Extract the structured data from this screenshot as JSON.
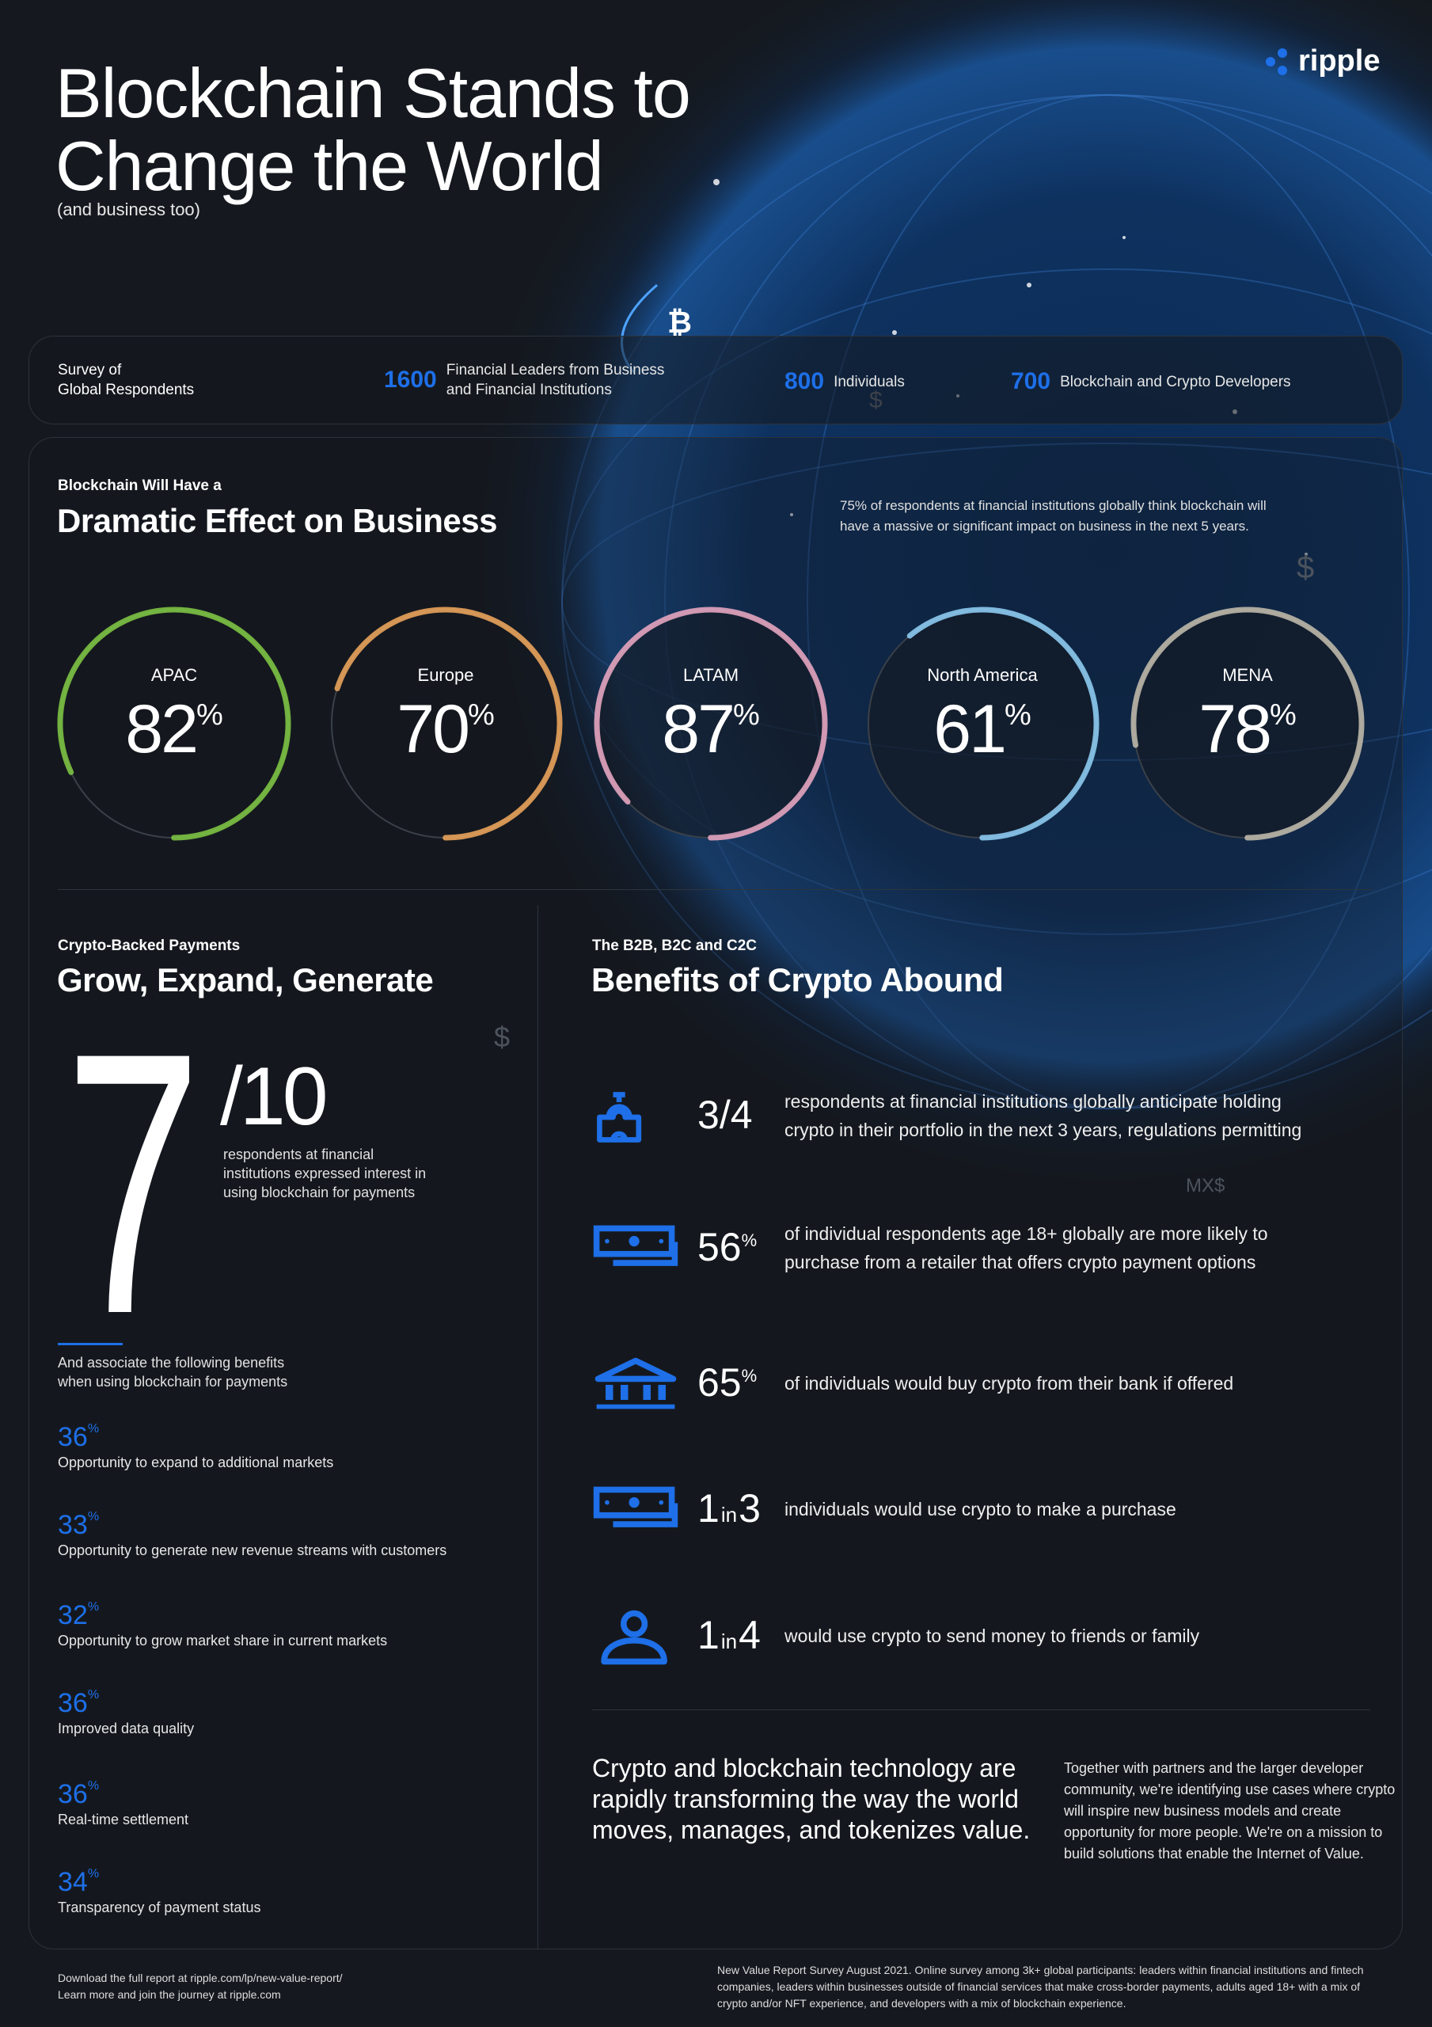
{
  "header": {
    "title_line1": "Blockchain Stands to",
    "title_line2": "Change the World",
    "subtitle": "(and business too)",
    "logo_text": "ripple"
  },
  "survey": {
    "label_line1": "Survey of",
    "label_line2": "Global Respondents",
    "items": [
      {
        "number": "1600",
        "line1": "Financial Leaders from Business",
        "line2": "and Financial Institutions"
      },
      {
        "number": "800",
        "line1": "Individuals"
      },
      {
        "number": "700",
        "line1": "Blockchain and Crypto Developers"
      }
    ]
  },
  "impact": {
    "kicker": "Blockchain Will Have a",
    "heading": "Dramatic Effect on Business",
    "note_line1": "75% of respondents at financial institutions globally think blockchain will",
    "note_line2": "have a massive or significant impact on business in the next 5 years.",
    "percent_sign": "%",
    "regions": [
      {
        "name": "APAC",
        "value": "82",
        "percent": 82,
        "color": "#7cc242"
      },
      {
        "name": "Europe",
        "value": "70",
        "percent": 70,
        "color": "#e8a25a"
      },
      {
        "name": "LATAM",
        "value": "87",
        "percent": 87,
        "color": "#e3a4bf"
      },
      {
        "name": "North America",
        "value": "61",
        "percent": 61,
        "color": "#8ccaf0"
      },
      {
        "name": "MENA",
        "value": "78",
        "percent": 78,
        "color": "#bdb7a8"
      }
    ]
  },
  "payments": {
    "kicker": "Crypto-Backed Payments",
    "heading": "Grow, Expand, Generate",
    "big_number": "7",
    "denominator": "/10",
    "desc_line1": "respondents at financial",
    "desc_line2": "institutions expressed interest in",
    "desc_line3": "using blockchain for payments",
    "intro_line1": "And associate the following benefits",
    "intro_line2": "when using blockchain for payments",
    "percent_sign": "%",
    "benefits": [
      {
        "value": "36",
        "label": "Opportunity to expand to additional markets"
      },
      {
        "value": "33",
        "label": "Opportunity to generate new revenue streams with customers"
      },
      {
        "value": "32",
        "label": "Opportunity to grow market share in current markets"
      },
      {
        "value": "36",
        "label": "Improved data quality"
      },
      {
        "value": "36",
        "label": "Real-time settlement"
      },
      {
        "value": "34",
        "label": "Transparency of payment status"
      }
    ]
  },
  "benefits": {
    "kicker": "The B2B, B2C and C2C",
    "heading": "Benefits of Crypto Abound",
    "rows": [
      {
        "icon": "institution-icon",
        "a": "3",
        "sep": "/",
        "b": "4",
        "line1": "respondents at financial institutions globally anticipate holding",
        "line2": "crypto in their portfolio in the next 3 years, regulations permitting"
      },
      {
        "icon": "cash-stack-icon",
        "a": "56",
        "sep": "%",
        "b": "",
        "line1": "of individual respondents age 18+ globally are more likely to",
        "line2": "purchase from a retailer that offers crypto payment options"
      },
      {
        "icon": "bank-icon",
        "a": "65",
        "sep": "%",
        "b": "",
        "line1": "of individuals would buy crypto from their bank if offered",
        "line2": ""
      },
      {
        "icon": "cash-stack-icon",
        "a": "1",
        "sep": "in",
        "b": "3",
        "line1": "individuals would use crypto to make a purchase",
        "line2": ""
      },
      {
        "icon": "person-icon",
        "a": "1",
        "sep": "in",
        "b": "4",
        "line1": "would use crypto to send money to friends or family",
        "line2": ""
      }
    ],
    "closing": "Crypto and blockchain technology are rapidly transforming the way the world moves, manages, and tokenizes value.",
    "side": "Together with partners and the larger developer community, we're identifying use cases where crypto will inspire new business models and create opportunity for more people. We're on a mission to build solutions that enable the Internet of Value."
  },
  "footer": {
    "left_line1": "Download the full report at ripple.com/lp/new-value-report/",
    "left_line2": "Learn more and join the journey at ripple.com",
    "right": "New Value Report Survey August 2021. Online survey among 3k+ global participants: leaders within financial institutions and fintech companies, leaders within businesses outside of financial services that make cross-border payments, adults aged 18+ with a mix of crypto and/or NFT experience, and developers with a mix of blockchain experience."
  },
  "colors": {
    "accent": "#1e6fe8",
    "background": "#15191f"
  }
}
